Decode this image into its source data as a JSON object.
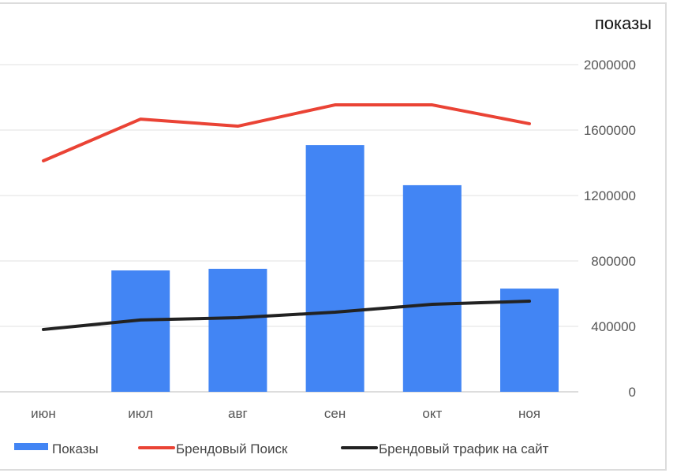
{
  "chart_data": {
    "type": "bar",
    "title": "",
    "ylabel": "показы",
    "xlabel": "",
    "ylim": [
      0,
      2000000
    ],
    "yticks": [
      "0",
      "400000",
      "800000",
      "1200000",
      "1600000",
      "2000000"
    ],
    "categories": [
      "июн",
      "июл",
      "авг",
      "сен",
      "окт",
      "ноя"
    ],
    "grid": true,
    "legend_position": "bottom",
    "series": [
      {
        "name": "Показы",
        "kind": "bar",
        "color": "#4285f4",
        "values": [
          0,
          742000,
          752000,
          1508000,
          1263000,
          631000
        ]
      },
      {
        "name": "Брендовый Поиск",
        "kind": "line",
        "color": "#ea4335",
        "values": [
          1412000,
          1667000,
          1624000,
          1754000,
          1754000,
          1639000
        ]
      },
      {
        "name": "Брендовый трафик на сайт",
        "kind": "line",
        "color": "#222222",
        "values": [
          381000,
          439000,
          453000,
          487000,
          535000,
          554000
        ]
      }
    ]
  }
}
